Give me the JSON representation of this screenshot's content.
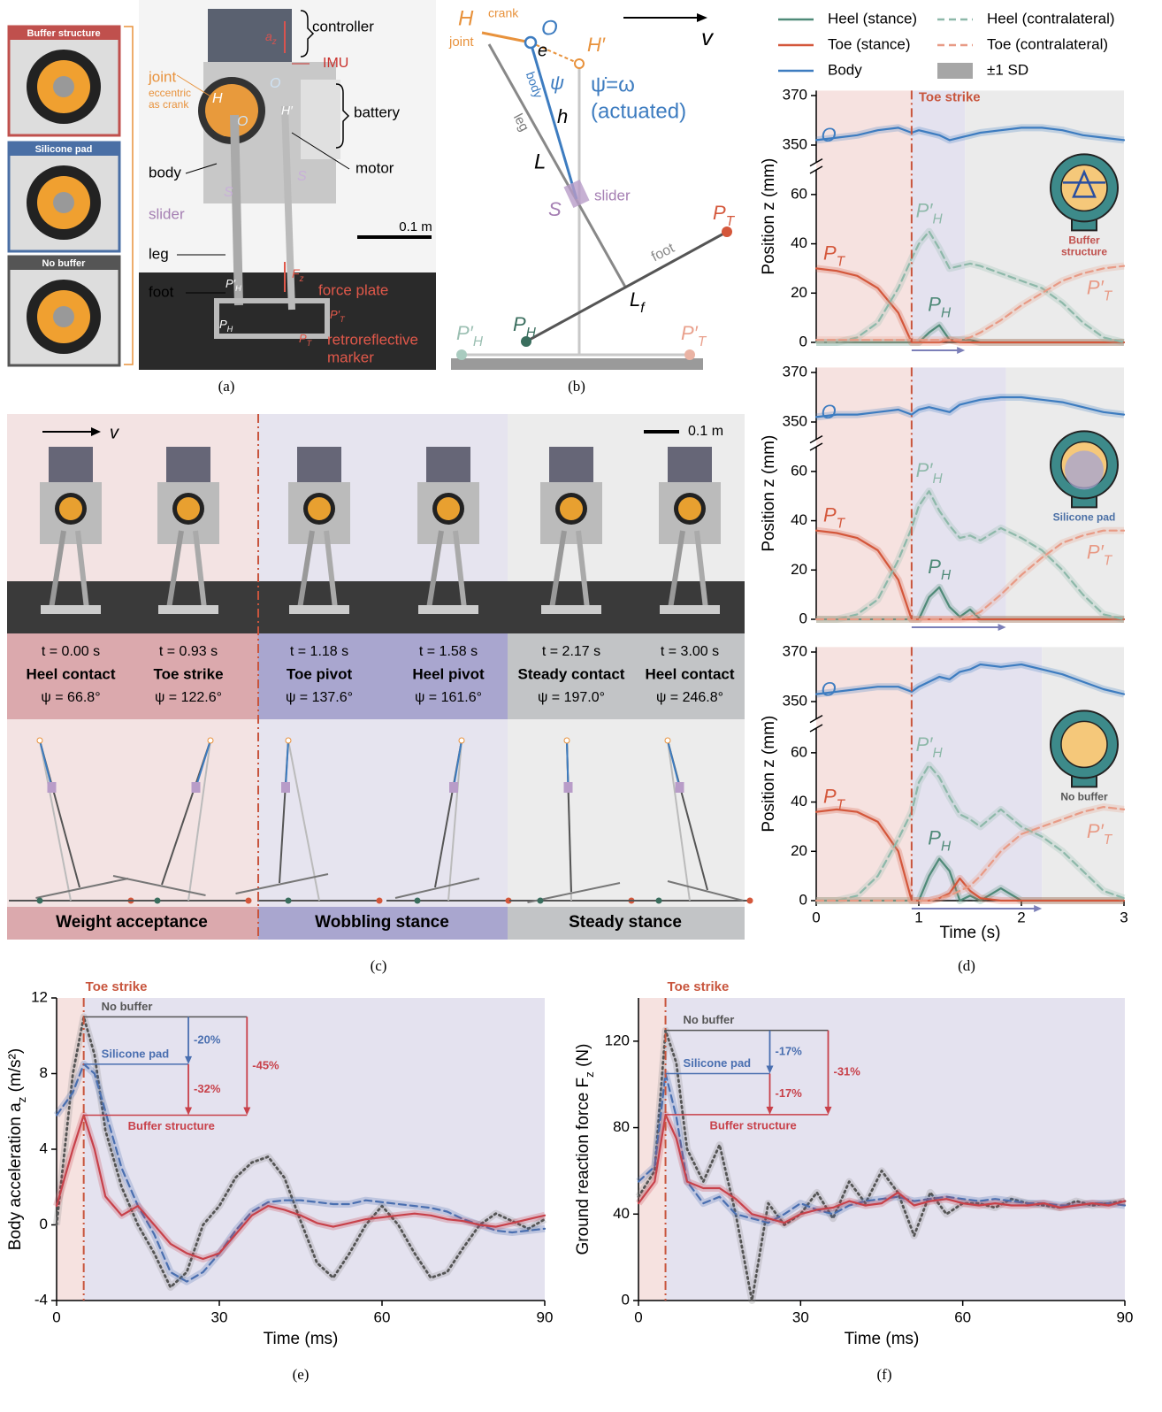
{
  "panel_a": {
    "insets": [
      "Buffer structure",
      "Silicone pad",
      "No buffer"
    ],
    "controller": "controller",
    "az": [
      "a",
      "z"
    ],
    "imu": "IMU",
    "joint": "joint",
    "eccentric": "eccentric",
    "as_crank": "as crank",
    "battery": "battery",
    "body": "body",
    "motor": "motor",
    "slider": "slider",
    "S_left": "S",
    "S_right": "S",
    "leg": "leg",
    "foot": "foot",
    "force_plate": "force plate",
    "fz": [
      "F",
      "z"
    ],
    "PHp": [
      "P′",
      "H"
    ],
    "PTp": [
      "P′",
      "T"
    ],
    "PH": [
      "P",
      "H"
    ],
    "PT": [
      "P",
      "T"
    ],
    "marker_1": "retroreflective",
    "marker_2": "marker",
    "scale": "0.1 m",
    "H": "H",
    "O_left": "O",
    "O_right": "O",
    "Hp": "H′"
  },
  "panel_b": {
    "H": "H",
    "crank": "crank",
    "O": "O",
    "joint": "joint",
    "e": "e",
    "Hp": "H′",
    "body": "body",
    "psi": "ψ",
    "psidot": "ψ̇=ω",
    "actuated": "(actuated)",
    "h": "h",
    "leg": "leg",
    "L": "L",
    "slider": "slider",
    "S": "S",
    "foot": "foot",
    "PT": [
      "P",
      "T"
    ],
    "Lf": [
      "L",
      "f"
    ],
    "PH": [
      "P",
      "H"
    ],
    "PHp": [
      "P′",
      "H"
    ],
    "PTp": [
      "P′",
      "T"
    ],
    "v": "v"
  },
  "panel_c": {
    "v": "v",
    "scale": "0.1 m",
    "frames": [
      {
        "t": "t = 0.00 s",
        "event": "Heel contact",
        "psi": "ψ = 66.8°"
      },
      {
        "t": "t = 0.93 s",
        "event": "Toe strike",
        "psi": "ψ = 122.6°"
      },
      {
        "t": "t = 1.18 s",
        "event": "Toe pivot",
        "psi": "ψ = 137.6°"
      },
      {
        "t": "t = 1.58 s",
        "event": "Heel pivot",
        "psi": "ψ = 161.6°"
      },
      {
        "t": "t = 2.17 s",
        "event": "Steady contact",
        "psi": "ψ = 197.0°"
      },
      {
        "t": "t = 3.00 s",
        "event": "Heel contact",
        "psi": "ψ = 246.8°"
      }
    ],
    "stages": [
      "Weight acceptance",
      "Wobbling stance",
      "Steady stance"
    ]
  },
  "chart_data": [
    {
      "type": "line",
      "x": [
        0,
        0.2,
        0.4,
        0.6,
        0.8,
        0.93,
        1.0,
        1.1,
        1.2,
        1.3,
        1.4,
        1.5,
        1.6,
        1.8,
        2.0,
        2.2,
        2.4,
        2.6,
        2.8,
        3.0
      ],
      "xlim": [
        0,
        3
      ],
      "ylim": [
        0,
        70
      ],
      "yticks": [
        0,
        20,
        40,
        60
      ],
      "y2lim": [
        343,
        372
      ],
      "y2ticks": [
        350,
        370
      ],
      "ylabel": "Position z (mm)",
      "toe_strike": 0.93,
      "toe_strike_label": "Toe strike",
      "wobble_end": 1.45,
      "inset_label": [
        "Buffer",
        "structure"
      ],
      "sd_label": "±1 SD",
      "series": [
        {
          "name": "Heel (stance)",
          "label": [
            "P",
            "H"
          ],
          "color": "#4f8a78",
          "style": "solid",
          "values": [
            0,
            0,
            0,
            0,
            0,
            0,
            0,
            4,
            7,
            1,
            1,
            1,
            0,
            0,
            0,
            0,
            0,
            0,
            0,
            0
          ]
        },
        {
          "name": "Toe (stance)",
          "label": [
            "P",
            "T"
          ],
          "color": "#d4573b",
          "style": "solid",
          "values": [
            30,
            29,
            27,
            22,
            12,
            0,
            0,
            0,
            0,
            1,
            0,
            0,
            0,
            0,
            0,
            0,
            0,
            0,
            0,
            0
          ]
        },
        {
          "name": "Body",
          "label": "O",
          "color": "#3d7cc0",
          "style": "solid",
          "axis": "y2",
          "values": [
            352,
            353,
            354,
            356,
            357,
            355,
            356,
            355,
            354,
            352,
            353,
            354,
            355,
            356,
            357,
            357,
            356,
            354,
            353,
            352
          ]
        },
        {
          "name": "Heel (contralateral)",
          "label": [
            "P′",
            "H"
          ],
          "color": "#8db8a9",
          "style": "dashed",
          "values": [
            0,
            0,
            2,
            8,
            22,
            34,
            40,
            45,
            38,
            30,
            31,
            32,
            31,
            28,
            25,
            22,
            16,
            8,
            2,
            0
          ]
        },
        {
          "name": "Toe (contralateral)",
          "label": [
            "P′",
            "T"
          ],
          "color": "#e89a85",
          "style": "dashed",
          "values": [
            1,
            1,
            1,
            1,
            1,
            1,
            1,
            1,
            1,
            1,
            1,
            2,
            4,
            9,
            15,
            20,
            25,
            28,
            30,
            31
          ]
        }
      ]
    },
    {
      "type": "line",
      "x": [
        0,
        0.2,
        0.4,
        0.6,
        0.8,
        0.93,
        1.0,
        1.1,
        1.2,
        1.3,
        1.4,
        1.5,
        1.6,
        1.8,
        2.0,
        2.2,
        2.4,
        2.6,
        2.8,
        3.0
      ],
      "xlim": [
        0,
        3
      ],
      "ylim": [
        0,
        70
      ],
      "yticks": [
        0,
        20,
        40,
        60
      ],
      "y2lim": [
        343,
        372
      ],
      "y2ticks": [
        350,
        370
      ],
      "ylabel": "Position z (mm)",
      "toe_strike": 0.93,
      "wobble_end": 1.85,
      "inset_label": [
        "Silicone pad"
      ],
      "series": [
        {
          "label": [
            "P",
            "H"
          ],
          "color": "#4f8a78",
          "style": "solid",
          "values": [
            0,
            0,
            0,
            0,
            0,
            0,
            0,
            9,
            13,
            5,
            1,
            4,
            0,
            0,
            0,
            0,
            0,
            0,
            0,
            0
          ]
        },
        {
          "label": [
            "P",
            "T"
          ],
          "color": "#d4573b",
          "style": "solid",
          "values": [
            36,
            35,
            33,
            28,
            16,
            0,
            0,
            0,
            0,
            0,
            0,
            0,
            0,
            0,
            0,
            0,
            0,
            0,
            0,
            0
          ]
        },
        {
          "label": "O",
          "color": "#3d7cc0",
          "style": "solid",
          "axis": "y2",
          "values": [
            352,
            353,
            353,
            354,
            355,
            353,
            355,
            356,
            355,
            354,
            357,
            358,
            359,
            360,
            360,
            359,
            358,
            356,
            354,
            353
          ]
        },
        {
          "label": [
            "P′",
            "H"
          ],
          "color": "#8db8a9",
          "style": "dashed",
          "values": [
            0,
            0,
            2,
            8,
            24,
            37,
            46,
            52,
            44,
            38,
            33,
            34,
            32,
            37,
            33,
            28,
            20,
            10,
            2,
            0
          ]
        },
        {
          "label": [
            "P′",
            "T"
          ],
          "color": "#e89a85",
          "style": "dashed",
          "values": [
            0,
            0,
            0,
            0,
            0,
            0,
            0,
            0,
            0,
            0,
            0,
            1,
            3,
            10,
            18,
            25,
            31,
            34,
            36,
            36
          ]
        }
      ]
    },
    {
      "type": "line",
      "x": [
        0,
        0.2,
        0.4,
        0.6,
        0.8,
        0.93,
        1.0,
        1.1,
        1.2,
        1.3,
        1.4,
        1.5,
        1.6,
        1.8,
        2.0,
        2.2,
        2.4,
        2.6,
        2.8,
        3.0
      ],
      "xlim": [
        0,
        3
      ],
      "xticks": [
        0,
        1,
        2,
        3
      ],
      "xlabel": "Time (s)",
      "ylim": [
        0,
        70
      ],
      "yticks": [
        0,
        20,
        40,
        60
      ],
      "y2lim": [
        343,
        372
      ],
      "y2ticks": [
        350,
        370
      ],
      "ylabel": "Position z (mm)",
      "toe_strike": 0.93,
      "wobble_end": 2.2,
      "inset_label": [
        "No buffer"
      ],
      "series": [
        {
          "label": [
            "P",
            "H"
          ],
          "color": "#4f8a78",
          "style": "solid",
          "values": [
            0,
            0,
            0,
            0,
            0,
            0,
            0,
            10,
            17,
            12,
            0,
            2,
            0,
            5,
            0,
            0,
            0,
            0,
            0,
            0
          ]
        },
        {
          "label": [
            "P",
            "T"
          ],
          "color": "#d4573b",
          "style": "solid",
          "values": [
            36,
            37,
            36,
            32,
            20,
            0,
            0,
            0,
            1,
            3,
            9,
            4,
            1,
            0,
            0,
            0,
            0,
            0,
            0,
            0
          ]
        },
        {
          "label": "O",
          "color": "#3d7cc0",
          "style": "solid",
          "axis": "y2",
          "values": [
            353,
            354,
            355,
            356,
            356,
            354,
            356,
            358,
            360,
            359,
            362,
            363,
            365,
            364,
            365,
            363,
            361,
            358,
            355,
            353
          ]
        },
        {
          "label": [
            "P′",
            "H"
          ],
          "color": "#8db8a9",
          "style": "dashed",
          "values": [
            0,
            0,
            2,
            10,
            25,
            36,
            48,
            55,
            50,
            42,
            35,
            33,
            30,
            37,
            30,
            26,
            20,
            12,
            4,
            1
          ]
        },
        {
          "label": [
            "P′",
            "T"
          ],
          "color": "#e89a85",
          "style": "dashed",
          "values": [
            0,
            0,
            0,
            0,
            0,
            0,
            0,
            0,
            1,
            2,
            4,
            6,
            10,
            20,
            27,
            30,
            33,
            36,
            38,
            37
          ]
        }
      ]
    },
    {
      "type": "line",
      "x": [
        0,
        3,
        5,
        7,
        9,
        12,
        15,
        18,
        21,
        24,
        27,
        30,
        33,
        36,
        39,
        42,
        45,
        48,
        51,
        54,
        57,
        60,
        63,
        66,
        69,
        72,
        75,
        78,
        81,
        84,
        87,
        90
      ],
      "xlim": [
        0,
        90
      ],
      "xticks": [
        0,
        30,
        60,
        90
      ],
      "xlabel": "Time (ms)",
      "ylim": [
        -4,
        12
      ],
      "yticks": [
        -4,
        0,
        4,
        8,
        12
      ],
      "ylabel": [
        "Body acceleration a",
        "z",
        " (m/s²)"
      ],
      "toe_strike": 5,
      "toe_strike_label": "Toe strike",
      "reduction_labels": [
        "-20%",
        "-32%",
        "-45%"
      ],
      "series": [
        {
          "name": "No buffer",
          "color": "#555555",
          "style": "dotted",
          "values": [
            0,
            8,
            11,
            9,
            5,
            2,
            0,
            -1.5,
            -3.3,
            -2.5,
            0,
            1,
            2.5,
            3.3,
            3.6,
            2.5,
            0.2,
            -2,
            -2.8,
            -1.5,
            0,
            1,
            0,
            -1.5,
            -2.8,
            -2.5,
            -1.2,
            0,
            0.6,
            0.2,
            -0.2,
            0.3
          ]
        },
        {
          "name": "Silicone pad",
          "color": "#4a6fb0",
          "style": "dashed",
          "values": [
            5.8,
            7,
            8.5,
            8,
            6,
            3,
            1,
            -0.5,
            -2.5,
            -3,
            -2.5,
            -1.5,
            -0.3,
            0.7,
            1.2,
            1.3,
            1.3,
            1.2,
            1.1,
            1.1,
            1.3,
            1.2,
            1.1,
            1,
            0.9,
            0.7,
            0.3,
            0,
            -0.3,
            -0.4,
            -0.3,
            -0.2
          ]
        },
        {
          "name": "Buffer structure",
          "color": "#c8414a",
          "style": "solid",
          "values": [
            1,
            4,
            5.8,
            4,
            1.5,
            0.5,
            1,
            0,
            -1,
            -1.5,
            -1.8,
            -1.5,
            -0.5,
            0.5,
            1,
            0.8,
            0.5,
            0.1,
            -0.1,
            0.1,
            0.3,
            0.4,
            0.5,
            0.6,
            0.5,
            0.3,
            0.2,
            0,
            -0.1,
            0.1,
            0.3,
            0.5
          ]
        }
      ]
    },
    {
      "type": "line",
      "x": [
        0,
        3,
        5,
        7,
        9,
        12,
        15,
        18,
        21,
        24,
        27,
        30,
        33,
        36,
        39,
        42,
        45,
        48,
        51,
        54,
        57,
        60,
        63,
        66,
        69,
        72,
        75,
        78,
        81,
        84,
        87,
        90
      ],
      "xlim": [
        0,
        90
      ],
      "xticks": [
        0,
        30,
        60,
        90
      ],
      "xlabel": "Time (ms)",
      "ylim": [
        0,
        140
      ],
      "yticks": [
        0,
        40,
        80,
        120
      ],
      "ylabel": [
        "Ground reaction force F",
        "z",
        " (N)"
      ],
      "toe_strike": 5,
      "toe_strike_label": "Toe strike",
      "reduction_labels": [
        "-17%",
        "-17%",
        "-31%"
      ],
      "series": [
        {
          "name": "No buffer",
          "color": "#555555",
          "style": "dotted",
          "values": [
            48,
            60,
            125,
            110,
            70,
            55,
            72,
            40,
            0,
            45,
            35,
            40,
            50,
            38,
            55,
            45,
            60,
            50,
            30,
            50,
            40,
            45,
            45,
            43,
            47,
            45,
            44,
            43,
            46,
            44,
            45,
            46
          ]
        },
        {
          "name": "Silicone pad",
          "color": "#4a6fb0",
          "style": "dashed",
          "values": [
            55,
            62,
            105,
            85,
            55,
            45,
            48,
            40,
            38,
            36,
            40,
            45,
            42,
            40,
            44,
            46,
            47,
            48,
            46,
            47,
            48,
            47,
            46,
            47,
            46,
            45,
            45,
            44,
            44,
            45,
            45,
            44
          ]
        },
        {
          "name": "Buffer structure",
          "color": "#c8414a",
          "style": "solid",
          "values": [
            45,
            55,
            86,
            75,
            55,
            52,
            52,
            47,
            40,
            38,
            36,
            40,
            42,
            43,
            46,
            44,
            45,
            50,
            44,
            46,
            47,
            45,
            44,
            45,
            44,
            44,
            45,
            43,
            44,
            45,
            44,
            46
          ]
        }
      ]
    }
  ],
  "captions": [
    "(a)",
    "(b)",
    "(c)",
    "(d)",
    "(e)",
    "(f)"
  ]
}
